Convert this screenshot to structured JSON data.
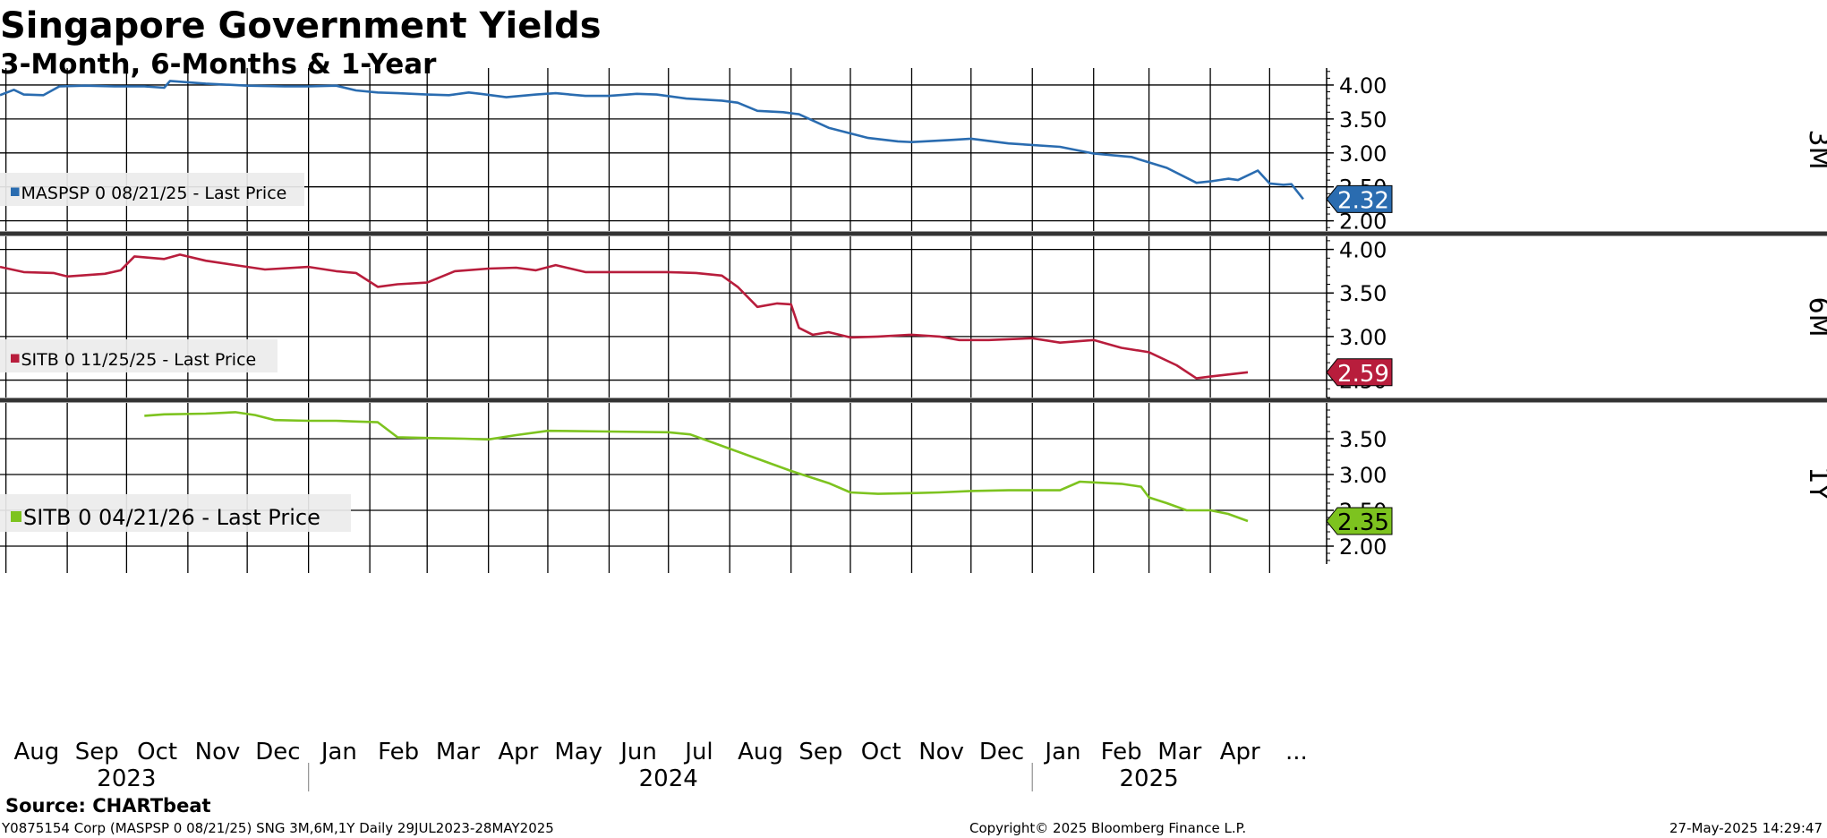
{
  "title": "Singapore Government Yields",
  "subtitle": "3-Month, 6-Months & 1-Year",
  "source": "Source:  CHARTbeat",
  "footer": {
    "left": "Y0875154 Corp (MASPSP 0 08/21/25) SNG 3M,6M,1Y  Daily 29JUL2023-28MAY2025",
    "center": "Copyright© 2025 Bloomberg Finance L.P.",
    "right": "27-May-2025 14:29:47"
  },
  "x_axis": {
    "months": [
      {
        "label": "Aug",
        "date": "2023-08-01"
      },
      {
        "label": "Sep",
        "date": "2023-09-01"
      },
      {
        "label": "Oct",
        "date": "2023-10-01"
      },
      {
        "label": "Nov",
        "date": "2023-11-01"
      },
      {
        "label": "Dec",
        "date": "2023-12-01"
      },
      {
        "label": "Jan",
        "date": "2024-01-01"
      },
      {
        "label": "Feb",
        "date": "2024-02-01"
      },
      {
        "label": "Mar",
        "date": "2024-03-01"
      },
      {
        "label": "Apr",
        "date": "2024-04-01"
      },
      {
        "label": "May",
        "date": "2024-05-01"
      },
      {
        "label": "Jun",
        "date": "2024-06-01"
      },
      {
        "label": "Jul",
        "date": "2024-07-01"
      },
      {
        "label": "Aug",
        "date": "2024-08-01"
      },
      {
        "label": "Sep",
        "date": "2024-09-01"
      },
      {
        "label": "Oct",
        "date": "2024-10-01"
      },
      {
        "label": "Nov",
        "date": "2024-11-01"
      },
      {
        "label": "Dec",
        "date": "2024-12-01"
      },
      {
        "label": "Jan",
        "date": "2025-01-01"
      },
      {
        "label": "Feb",
        "date": "2025-02-01"
      },
      {
        "label": "Mar",
        "date": "2025-03-01"
      },
      {
        "label": "Apr",
        "date": "2025-04-01"
      },
      {
        "label": "...",
        "date": "2025-05-01"
      }
    ],
    "years": [
      {
        "label": "2023",
        "date": "2023-10-01"
      },
      {
        "label": "2024",
        "date": "2024-07-01"
      },
      {
        "label": "2025",
        "date": "2025-03-01"
      }
    ],
    "year_dividers": [
      "2024-01-01",
      "2025-01-01"
    ]
  },
  "chart_data": [
    {
      "type": "line",
      "panel_label": "3M",
      "legend": "MASPSP 0 08/21/25 - Last Price",
      "color": "#2a6cb0",
      "last_value": "2.32",
      "ylim": [
        1.85,
        4.25
      ],
      "y_ticks": [
        "4.00",
        "3.50",
        "3.00",
        "2.50",
        "2.00"
      ],
      "series": [
        {
          "x": [
            "2023-07-29",
            "2023-08-05",
            "2023-08-10",
            "2023-08-20",
            "2023-08-28",
            "2023-09-10",
            "2023-09-25",
            "2023-10-10",
            "2023-10-20",
            "2023-10-23",
            "2023-11-01",
            "2023-11-10",
            "2023-12-01",
            "2023-12-20",
            "2024-01-01",
            "2024-01-15",
            "2024-01-25",
            "2024-02-05",
            "2024-02-15",
            "2024-03-01",
            "2024-03-12",
            "2024-03-22",
            "2024-03-28",
            "2024-04-10",
            "2024-04-25",
            "2024-05-05",
            "2024-05-20",
            "2024-06-01",
            "2024-06-15",
            "2024-06-25",
            "2024-07-10",
            "2024-07-28",
            "2024-08-05",
            "2024-08-15",
            "2024-08-28",
            "2024-09-05",
            "2024-09-20",
            "2024-10-10",
            "2024-10-25",
            "2024-11-01",
            "2024-11-20",
            "2024-12-01",
            "2024-12-20",
            "2025-01-15",
            "2025-02-01",
            "2025-02-20",
            "2025-03-01",
            "2025-03-10",
            "2025-03-25",
            "2025-04-01",
            "2025-04-10",
            "2025-04-15",
            "2025-04-25",
            "2025-05-01",
            "2025-05-08",
            "2025-05-12",
            "2025-05-18"
          ],
          "y": [
            3.85,
            3.93,
            3.86,
            3.85,
            3.98,
            3.99,
            3.98,
            3.98,
            3.96,
            4.06,
            4.04,
            4.02,
            3.99,
            3.98,
            3.98,
            3.99,
            3.92,
            3.89,
            3.88,
            3.86,
            3.85,
            3.89,
            3.87,
            3.82,
            3.86,
            3.88,
            3.84,
            3.84,
            3.87,
            3.86,
            3.8,
            3.77,
            3.74,
            3.62,
            3.6,
            3.57,
            3.37,
            3.22,
            3.17,
            3.16,
            3.19,
            3.21,
            3.14,
            3.09,
            2.99,
            2.94,
            2.86,
            2.78,
            2.56,
            2.58,
            2.62,
            2.6,
            2.74,
            2.55,
            2.53,
            2.54,
            2.32
          ]
        }
      ]
    },
    {
      "type": "line",
      "panel_label": "6M",
      "legend": "SITB 0 11/25/25 - Last Price",
      "color": "#b81d3c",
      "last_value": "2.59",
      "ylim": [
        2.3,
        4.15
      ],
      "y_ticks": [
        "4.00",
        "3.50",
        "3.00",
        "2.50"
      ],
      "series": [
        {
          "x": [
            "2023-07-29",
            "2023-08-10",
            "2023-08-25",
            "2023-09-01",
            "2023-09-20",
            "2023-09-28",
            "2023-10-05",
            "2023-10-20",
            "2023-10-28",
            "2023-11-10",
            "2023-11-25",
            "2023-12-10",
            "2024-01-01",
            "2024-01-15",
            "2024-01-25",
            "2024-02-05",
            "2024-02-15",
            "2024-03-01",
            "2024-03-15",
            "2024-04-01",
            "2024-04-15",
            "2024-04-25",
            "2024-05-05",
            "2024-05-20",
            "2024-06-10",
            "2024-06-30",
            "2024-07-15",
            "2024-07-28",
            "2024-08-05",
            "2024-08-15",
            "2024-08-25",
            "2024-09-01",
            "2024-09-05",
            "2024-09-12",
            "2024-09-20",
            "2024-10-01",
            "2024-10-15",
            "2024-11-01",
            "2024-11-15",
            "2024-11-25",
            "2024-12-10",
            "2025-01-01",
            "2025-01-15",
            "2025-02-01",
            "2025-02-15",
            "2025-03-01",
            "2025-03-15",
            "2025-03-25",
            "2025-04-01",
            "2025-04-20"
          ],
          "y": [
            3.8,
            3.74,
            3.73,
            3.69,
            3.72,
            3.76,
            3.92,
            3.89,
            3.94,
            3.87,
            3.82,
            3.77,
            3.8,
            3.75,
            3.73,
            3.57,
            3.6,
            3.62,
            3.75,
            3.78,
            3.79,
            3.76,
            3.82,
            3.74,
            3.74,
            3.74,
            3.73,
            3.7,
            3.57,
            3.34,
            3.38,
            3.37,
            3.1,
            3.02,
            3.05,
            2.99,
            3.0,
            3.02,
            3.0,
            2.96,
            2.96,
            2.98,
            2.93,
            2.96,
            2.87,
            2.82,
            2.67,
            2.52,
            2.54,
            2.59
          ]
        }
      ]
    },
    {
      "type": "line",
      "panel_label": "1Y",
      "legend": "SITB 0 04/21/26 - Last Price",
      "color": "#7dc31f",
      "last_value": "2.35",
      "ylim": [
        1.75,
        4.0
      ],
      "y_ticks": [
        "3.50",
        "3.00",
        "2.50",
        "2.00"
      ],
      "series": [
        {
          "x": [
            "2023-10-10",
            "2023-10-20",
            "2023-11-10",
            "2023-11-25",
            "2023-12-05",
            "2023-12-15",
            "2024-01-01",
            "2024-01-15",
            "2024-01-25",
            "2024-02-05",
            "2024-02-15",
            "2024-03-01",
            "2024-03-20",
            "2024-04-01",
            "2024-04-15",
            "2024-05-01",
            "2024-06-01",
            "2024-07-01",
            "2024-07-12",
            "2024-07-28",
            "2024-08-15",
            "2024-09-01",
            "2024-09-20",
            "2024-10-01",
            "2024-10-15",
            "2024-11-01",
            "2024-11-15",
            "2024-12-01",
            "2024-12-20",
            "2025-01-15",
            "2025-01-25",
            "2025-02-01",
            "2025-02-15",
            "2025-02-25",
            "2025-03-01",
            "2025-03-10",
            "2025-03-20",
            "2025-04-01",
            "2025-04-10",
            "2025-04-20"
          ],
          "y": [
            3.82,
            3.84,
            3.85,
            3.87,
            3.83,
            3.76,
            3.75,
            3.75,
            3.74,
            3.73,
            3.52,
            3.51,
            3.5,
            3.49,
            3.55,
            3.61,
            3.6,
            3.59,
            3.56,
            3.4,
            3.22,
            3.05,
            2.88,
            2.75,
            2.73,
            2.74,
            2.75,
            2.77,
            2.78,
            2.78,
            2.9,
            2.89,
            2.87,
            2.83,
            2.68,
            2.6,
            2.5,
            2.5,
            2.45,
            2.35
          ]
        }
      ]
    }
  ]
}
